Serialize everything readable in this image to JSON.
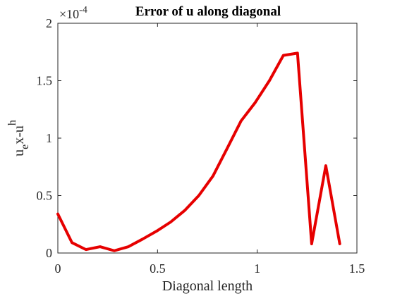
{
  "chart_data": {
    "type": "line",
    "title": "Error of u along diagonal",
    "xlabel": "Diagonal length",
    "ylabel": {
      "base1": "u",
      "sub": "e",
      "base2": "x-u",
      "sup": "h"
    },
    "y_multiplier": {
      "base": "×10",
      "exponent": "-4"
    },
    "xlim": [
      0,
      1.5
    ],
    "ylim": [
      0,
      2
    ],
    "x_ticks": [
      0,
      0.5,
      1,
      1.5
    ],
    "x_tick_labels": [
      "0",
      "0.5",
      "1",
      "1.5"
    ],
    "y_ticks": [
      0,
      0.5,
      1,
      1.5,
      2
    ],
    "y_tick_labels": [
      "0",
      "0.5",
      "1",
      "1.5",
      "2"
    ],
    "grid": false,
    "series": [
      {
        "color": "#e60000",
        "x": [
          0,
          0.071,
          0.141,
          0.212,
          0.283,
          0.354,
          0.424,
          0.495,
          0.566,
          0.636,
          0.707,
          0.778,
          0.849,
          0.919,
          0.99,
          1.061,
          1.131,
          1.202,
          1.273,
          1.344,
          1.414
        ],
        "y": [
          0.34,
          0.09,
          0.03,
          0.055,
          0.02,
          0.055,
          0.12,
          0.19,
          0.27,
          0.37,
          0.5,
          0.67,
          0.91,
          1.15,
          1.31,
          1.5,
          1.72,
          1.74,
          0.08,
          0.76,
          0.08
        ]
      }
    ]
  }
}
